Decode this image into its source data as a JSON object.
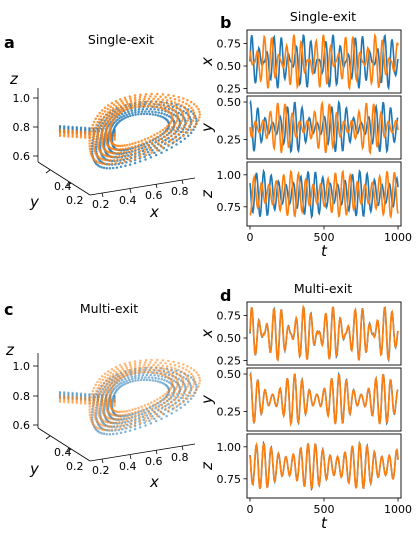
{
  "colors": {
    "series_a": "#1f77b4",
    "series_b": "#ff7f0e"
  },
  "panels": [
    {
      "letter": "a",
      "title": "Single-exit"
    },
    {
      "letter": "b",
      "title": "Single-exit"
    },
    {
      "letter": "c",
      "title": "Multi-exit"
    },
    {
      "letter": "d",
      "title": "Multi-exit"
    }
  ],
  "chart_data": [
    {
      "panel": "a",
      "type": "scatter",
      "projection": "3d",
      "title": "Single-exit",
      "xlabel": "x",
      "ylabel": "y",
      "zlabel": "z",
      "x_ticks": [
        "0.2",
        "0.4",
        "0.6",
        "0.8"
      ],
      "y_ticks": [
        "0.2",
        "0.4"
      ],
      "z_ticks": [
        "0.6",
        "0.8",
        "1.0"
      ],
      "series_colors": [
        "#1f77b4",
        "#ff7f0e"
      ],
      "xlim": [
        0.15,
        0.9
      ],
      "ylim": [
        0.15,
        0.5
      ],
      "zlim": [
        0.55,
        1.05
      ]
    },
    {
      "panel": "b",
      "type": "line",
      "title": "Single-exit",
      "xlabel": "t",
      "xlim": [
        -20,
        1020
      ],
      "x_ticks": [
        "0",
        "500",
        "1000"
      ],
      "subplots": [
        {
          "ylabel": "x",
          "y_ticks": [
            "0.25",
            "0.50",
            "0.75"
          ],
          "ylim": [
            0.2,
            0.9
          ]
        },
        {
          "ylabel": "y",
          "y_ticks": [
            "0.25",
            "0.50"
          ],
          "ylim": [
            0.12,
            0.54
          ]
        },
        {
          "ylabel": "z",
          "y_ticks": [
            "0.75",
            "1.00"
          ],
          "ylim": [
            0.6,
            1.1
          ]
        }
      ],
      "series_colors": [
        "#1f77b4",
        "#ff7f0e"
      ],
      "synchronized": false
    },
    {
      "panel": "c",
      "type": "scatter",
      "projection": "3d",
      "title": "Multi-exit",
      "xlabel": "x",
      "ylabel": "y",
      "zlabel": "z",
      "x_ticks": [
        "0.2",
        "0.4",
        "0.6",
        "0.8"
      ],
      "y_ticks": [
        "0.2",
        "0.4"
      ],
      "z_ticks": [
        "0.6",
        "0.8",
        "1.0"
      ],
      "series_colors": [
        "#1f77b4",
        "#ff7f0e"
      ],
      "xlim": [
        0.15,
        0.9
      ],
      "ylim": [
        0.15,
        0.5
      ],
      "zlim": [
        0.55,
        1.05
      ]
    },
    {
      "panel": "d",
      "type": "line",
      "title": "Multi-exit",
      "xlabel": "t",
      "xlim": [
        -20,
        1020
      ],
      "x_ticks": [
        "0",
        "500",
        "1000"
      ],
      "subplots": [
        {
          "ylabel": "x",
          "y_ticks": [
            "0.25",
            "0.50",
            "0.75"
          ],
          "ylim": [
            0.2,
            0.9
          ]
        },
        {
          "ylabel": "y",
          "y_ticks": [
            "0.25",
            "0.50"
          ],
          "ylim": [
            0.12,
            0.54
          ]
        },
        {
          "ylabel": "z",
          "y_ticks": [
            "0.75",
            "1.00"
          ],
          "ylim": [
            0.6,
            1.1
          ]
        }
      ],
      "series_colors": [
        "#1f77b4",
        "#ff7f0e"
      ],
      "synchronized": true
    }
  ]
}
